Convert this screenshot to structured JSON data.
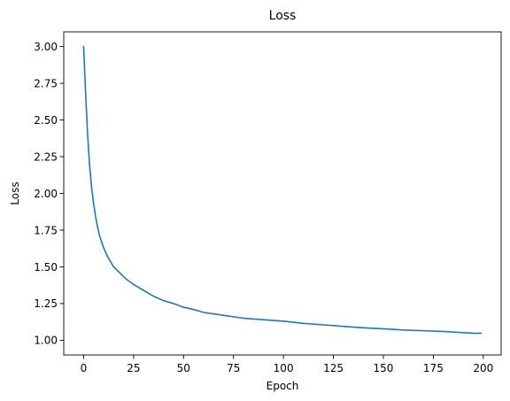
{
  "chart_data": {
    "type": "line",
    "title": "Loss",
    "xlabel": "Epoch",
    "ylabel": "Loss",
    "xlim": [
      -9.95,
      208.95
    ],
    "ylim": [
      0.9,
      3.1
    ],
    "xticks": [
      0,
      25,
      50,
      75,
      100,
      125,
      150,
      175,
      200
    ],
    "xtick_labels": [
      "0",
      "25",
      "50",
      "75",
      "100",
      "125",
      "150",
      "175",
      "200"
    ],
    "yticks": [
      1.0,
      1.25,
      1.5,
      1.75,
      2.0,
      2.25,
      2.5,
      2.75,
      3.0
    ],
    "ytick_labels": [
      "1.00",
      "1.25",
      "1.50",
      "1.75",
      "2.00",
      "2.25",
      "2.50",
      "2.75",
      "3.00"
    ],
    "grid": false,
    "series": [
      {
        "color": "#1f77b4",
        "x": [
          0,
          1,
          2,
          3,
          4,
          5,
          6,
          7,
          8,
          10,
          12,
          15,
          18,
          21,
          25,
          30,
          35,
          40,
          45,
          50,
          55,
          60,
          65,
          70,
          75,
          80,
          90,
          100,
          110,
          120,
          130,
          140,
          150,
          160,
          170,
          180,
          190,
          196,
          199
        ],
        "y": [
          3.0,
          2.68,
          2.4,
          2.19,
          2.04,
          1.93,
          1.84,
          1.77,
          1.71,
          1.63,
          1.57,
          1.5,
          1.46,
          1.42,
          1.38,
          1.34,
          1.3,
          1.27,
          1.25,
          1.225,
          1.21,
          1.19,
          1.18,
          1.17,
          1.16,
          1.15,
          1.14,
          1.13,
          1.115,
          1.105,
          1.095,
          1.085,
          1.078,
          1.07,
          1.065,
          1.06,
          1.052,
          1.047,
          1.048
        ]
      }
    ]
  }
}
